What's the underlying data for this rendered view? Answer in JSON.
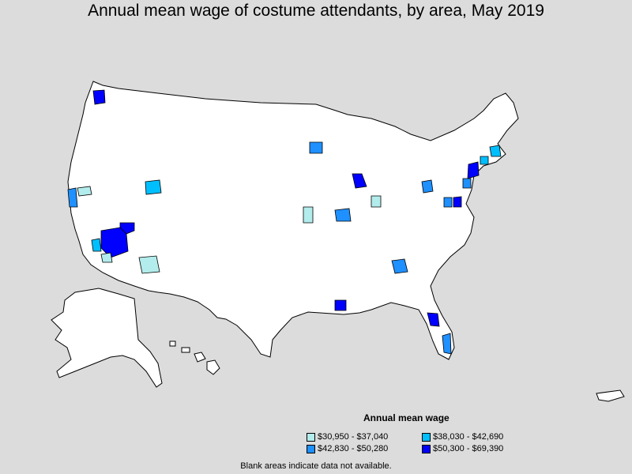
{
  "title": "Annual mean wage of costume attendants, by area, May 2019",
  "legend": {
    "title": "Annual mean wage",
    "items": [
      {
        "label": "$30,950 - $37,040",
        "color": "#b3ecec"
      },
      {
        "label": "$38,030 - $42,690",
        "color": "#00bfff"
      },
      {
        "label": "$42,830 - $50,280",
        "color": "#1e90ff"
      },
      {
        "label": "$50,300 - $69,390",
        "color": "#0000ff"
      }
    ]
  },
  "footnote": "Blank areas indicate data not available.",
  "colors": {
    "background": "#dcdcdc",
    "land": "#ffffff",
    "border": "#000000"
  }
}
